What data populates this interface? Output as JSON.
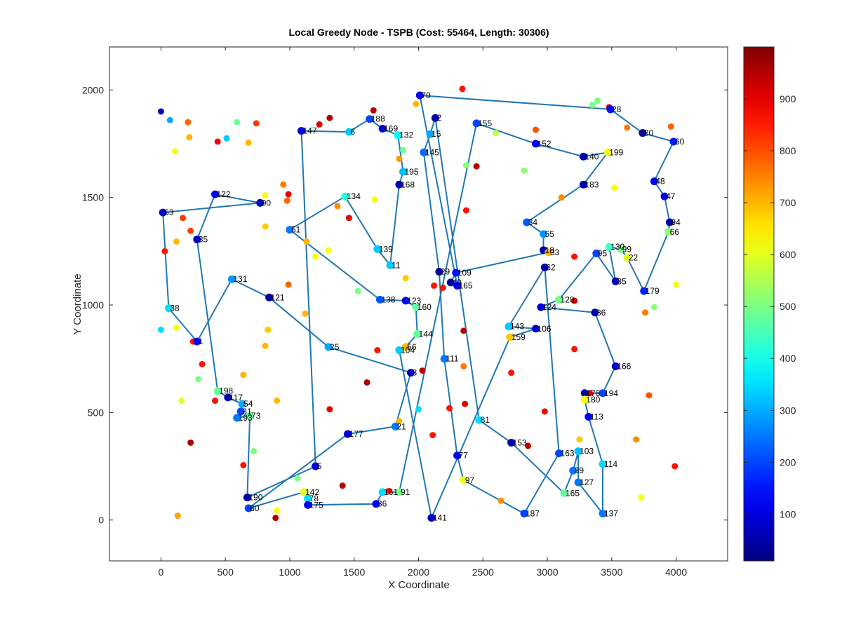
{
  "chart_data": {
    "type": "scatter",
    "title": "Local Greedy Node - TSPB (Cost: 55464, Length: 30306)",
    "xlabel": "X Coordinate",
    "ylabel": "Y Coordinate",
    "xlim": [
      -400,
      4400
    ],
    "ylim": [
      -190,
      2200
    ],
    "xticks": [
      0,
      500,
      1000,
      1500,
      2000,
      2500,
      3000,
      3500,
      4000
    ],
    "yticks": [
      0,
      500,
      1000,
      1500,
      2000
    ],
    "colorbar": {
      "colormap": "jet",
      "min": 10,
      "max": 1000,
      "ticks": [
        100,
        200,
        300,
        400,
        500,
        600,
        700,
        800,
        900
      ]
    },
    "tour": [
      {
        "label": "70",
        "x": 2010,
        "y": 1975,
        "c": 120
      },
      {
        "label": "28",
        "x": 3490,
        "y": 1910,
        "c": 140
      },
      {
        "label": "20",
        "x": 3740,
        "y": 1800,
        "c": 30
      },
      {
        "label": "60",
        "x": 3980,
        "y": 1760,
        "c": 160
      },
      {
        "label": "48",
        "x": 3830,
        "y": 1575,
        "c": 130
      },
      {
        "label": "47",
        "x": 3910,
        "y": 1505,
        "c": 110
      },
      {
        "label": "94",
        "x": 3950,
        "y": 1385,
        "c": 50
      },
      {
        "label": "66",
        "x": 3940,
        "y": 1340,
        "c": 520
      },
      {
        "label": "179",
        "x": 3750,
        "y": 1065,
        "c": 170
      },
      {
        "label": "22",
        "x": 3620,
        "y": 1220,
        "c": 600
      },
      {
        "label": "99",
        "x": 3570,
        "y": 1260,
        "c": 500
      },
      {
        "label": "130",
        "x": 3480,
        "y": 1270,
        "c": 440
      },
      {
        "label": "85",
        "x": 3530,
        "y": 1110,
        "c": 60
      },
      {
        "label": "95",
        "x": 3380,
        "y": 1240,
        "c": 200
      },
      {
        "label": "128",
        "x": 3090,
        "y": 1025,
        "c": 500
      },
      {
        "label": "124",
        "x": 2950,
        "y": 990,
        "c": 100
      },
      {
        "label": "86",
        "x": 3370,
        "y": 965,
        "c": 50
      },
      {
        "label": "166",
        "x": 3530,
        "y": 715,
        "c": 80
      },
      {
        "label": "194",
        "x": 3430,
        "y": 590,
        "c": 200
      },
      {
        "label": "176",
        "x": 3290,
        "y": 590,
        "c": 40
      },
      {
        "label": "180",
        "x": 3290,
        "y": 560,
        "c": 620
      },
      {
        "label": "113",
        "x": 3320,
        "y": 480,
        "c": 120
      },
      {
        "label": "114",
        "x": 3430,
        "y": 260,
        "c": 350
      },
      {
        "label": "137",
        "x": 3430,
        "y": 30,
        "c": 250
      },
      {
        "label": "127",
        "x": 3240,
        "y": 175,
        "c": 250
      },
      {
        "label": "103",
        "x": 3240,
        "y": 320,
        "c": 320
      },
      {
        "label": "89",
        "x": 3200,
        "y": 230,
        "c": 250
      },
      {
        "label": "165",
        "x": 3130,
        "y": 125,
        "c": 480
      },
      {
        "label": "153",
        "x": 2720,
        "y": 360,
        "c": 50
      },
      {
        "label": "81",
        "x": 2470,
        "y": 465,
        "c": 350
      },
      {
        "label": "2",
        "x": 2130,
        "y": 1870,
        "c": 60
      },
      {
        "label": "15",
        "x": 2090,
        "y": 1795,
        "c": 300
      },
      {
        "label": "145",
        "x": 2040,
        "y": 1710,
        "c": 240
      },
      {
        "label": "29",
        "x": 2160,
        "y": 1155,
        "c": 30
      },
      {
        "label": "111",
        "x": 2200,
        "y": 750,
        "c": 250
      },
      {
        "label": "77",
        "x": 2300,
        "y": 300,
        "c": 120
      },
      {
        "label": "97",
        "x": 2350,
        "y": 185,
        "c": 620
      },
      {
        "label": "187",
        "x": 2820,
        "y": 30,
        "c": 200
      },
      {
        "label": "163",
        "x": 3090,
        "y": 310,
        "c": 200
      },
      {
        "label": "62",
        "x": 2980,
        "y": 1175,
        "c": 60
      },
      {
        "label": "143",
        "x": 2700,
        "y": 900,
        "c": 330
      },
      {
        "label": "106",
        "x": 2910,
        "y": 890,
        "c": 80
      },
      {
        "label": "159",
        "x": 2710,
        "y": 850,
        "c": 680
      },
      {
        "label": "141",
        "x": 2100,
        "y": 10,
        "c": 80
      },
      {
        "label": "104",
        "x": 1850,
        "y": 790,
        "c": 330
      },
      {
        "label": "56",
        "x": 1900,
        "y": 805,
        "c": 700
      },
      {
        "label": "144",
        "x": 1990,
        "y": 865,
        "c": 480
      },
      {
        "label": "160",
        "x": 1980,
        "y": 990,
        "c": 480
      },
      {
        "label": "123",
        "x": 1900,
        "y": 1020,
        "c": 120
      },
      {
        "label": "138",
        "x": 1700,
        "y": 1025,
        "c": 220
      },
      {
        "label": "51",
        "x": 1000,
        "y": 1350,
        "c": 250
      },
      {
        "label": "134",
        "x": 1430,
        "y": 1505,
        "c": 420
      },
      {
        "label": "139",
        "x": 1680,
        "y": 1260,
        "c": 330
      },
      {
        "label": "11",
        "x": 1780,
        "y": 1185,
        "c": 330
      },
      {
        "label": "168",
        "x": 1850,
        "y": 1560,
        "c": 60
      },
      {
        "label": "195",
        "x": 1880,
        "y": 1620,
        "c": 320
      },
      {
        "label": "132",
        "x": 1840,
        "y": 1790,
        "c": 380
      },
      {
        "label": "169",
        "x": 1720,
        "y": 1820,
        "c": 100
      },
      {
        "label": "188",
        "x": 1620,
        "y": 1865,
        "c": 200
      },
      {
        "label": "6",
        "x": 1460,
        "y": 1805,
        "c": 330
      },
      {
        "label": "147",
        "x": 1090,
        "y": 1810,
        "c": 100
      },
      {
        "label": "5",
        "x": 1200,
        "y": 250,
        "c": 100
      },
      {
        "label": "190",
        "x": 670,
        "y": 105,
        "c": 50
      },
      {
        "label": "73",
        "x": 690,
        "y": 485,
        "c": 480
      },
      {
        "label": "193",
        "x": 590,
        "y": 475,
        "c": 250
      },
      {
        "label": "31",
        "x": 620,
        "y": 505,
        "c": 200
      },
      {
        "label": "54",
        "x": 630,
        "y": 540,
        "c": 300
      },
      {
        "label": "117",
        "x": 520,
        "y": 570,
        "c": 50
      },
      {
        "label": "198",
        "x": 440,
        "y": 600,
        "c": 480
      },
      {
        "label": "35",
        "x": 280,
        "y": 1305,
        "c": 80
      },
      {
        "label": "122",
        "x": 420,
        "y": 1515,
        "c": 120
      },
      {
        "label": "90",
        "x": 770,
        "y": 1475,
        "c": 80
      },
      {
        "label": "63",
        "x": 15,
        "y": 1430,
        "c": 80
      },
      {
        "label": "38",
        "x": 60,
        "y": 985,
        "c": 350
      },
      {
        "label": "1",
        "x": 280,
        "y": 830,
        "c": 120
      },
      {
        "label": "131",
        "x": 550,
        "y": 1120,
        "c": 280
      },
      {
        "label": "121",
        "x": 840,
        "y": 1035,
        "c": 40
      },
      {
        "label": "25",
        "x": 1300,
        "y": 805,
        "c": 300
      },
      {
        "label": "8",
        "x": 1940,
        "y": 685,
        "c": 80
      },
      {
        "label": "21",
        "x": 1820,
        "y": 435,
        "c": 250
      },
      {
        "label": "177",
        "x": 1450,
        "y": 400,
        "c": 100
      },
      {
        "label": "80",
        "x": 680,
        "y": 55,
        "c": 200
      },
      {
        "label": "142",
        "x": 1110,
        "y": 130,
        "c": 600
      },
      {
        "label": "78",
        "x": 1140,
        "y": 100,
        "c": 350
      },
      {
        "label": "175",
        "x": 1140,
        "y": 70,
        "c": 120
      },
      {
        "label": "36",
        "x": 1670,
        "y": 75,
        "c": 120
      },
      {
        "label": "161",
        "x": 1720,
        "y": 130,
        "c": 350
      },
      {
        "label": "91",
        "x": 1850,
        "y": 130,
        "c": 500
      },
      {
        "label": "155",
        "x": 2450,
        "y": 1845,
        "c": 200
      },
      {
        "label": "152",
        "x": 2910,
        "y": 1750,
        "c": 120
      },
      {
        "label": "140",
        "x": 3280,
        "y": 1690,
        "c": 60
      },
      {
        "label": "199",
        "x": 3470,
        "y": 1710,
        "c": 620
      },
      {
        "label": "183",
        "x": 3280,
        "y": 1560,
        "c": 60
      },
      {
        "label": "34",
        "x": 2840,
        "y": 1385,
        "c": 220
      },
      {
        "label": "55",
        "x": 2970,
        "y": 1330,
        "c": 280
      },
      {
        "label": "18",
        "x": 2970,
        "y": 1255,
        "c": 60
      },
      {
        "label": "33",
        "x": 3010,
        "y": 1245,
        "c": 700
      },
      {
        "label": "109",
        "x": 2290,
        "y": 1150,
        "c": 150
      },
      {
        "label": "40",
        "x": 2250,
        "y": 1105,
        "c": 40
      },
      {
        "label": "165b",
        "x": 2300,
        "y": 1090,
        "c": 120
      }
    ],
    "others": [
      {
        "x": 0,
        "y": 1900,
        "c": 80
      },
      {
        "x": 70,
        "y": 1860,
        "c": 300
      },
      {
        "x": 210,
        "y": 1850,
        "c": 780
      },
      {
        "x": 220,
        "y": 1780,
        "c": 700
      },
      {
        "x": 110,
        "y": 1715,
        "c": 620
      },
      {
        "x": 440,
        "y": 1760,
        "c": 880
      },
      {
        "x": 510,
        "y": 1775,
        "c": 330
      },
      {
        "x": 590,
        "y": 1850,
        "c": 480
      },
      {
        "x": 680,
        "y": 1755,
        "c": 700
      },
      {
        "x": 740,
        "y": 1845,
        "c": 820
      },
      {
        "x": 1230,
        "y": 1840,
        "c": 900
      },
      {
        "x": 1310,
        "y": 1870,
        "c": 950
      },
      {
        "x": 1650,
        "y": 1905,
        "c": 940
      },
      {
        "x": 1980,
        "y": 1935,
        "c": 700
      },
      {
        "x": 2340,
        "y": 2005,
        "c": 860
      },
      {
        "x": 3350,
        "y": 1930,
        "c": 500
      },
      {
        "x": 3390,
        "y": 1950,
        "c": 500
      },
      {
        "x": 3480,
        "y": 1920,
        "c": 900
      },
      {
        "x": 3620,
        "y": 1825,
        "c": 760
      },
      {
        "x": 3960,
        "y": 1830,
        "c": 780
      },
      {
        "x": 1850,
        "y": 1680,
        "c": 730
      },
      {
        "x": 1880,
        "y": 1720,
        "c": 480
      },
      {
        "x": 2370,
        "y": 1650,
        "c": 520
      },
      {
        "x": 2450,
        "y": 1645,
        "c": 950
      },
      {
        "x": 2600,
        "y": 1800,
        "c": 560
      },
      {
        "x": 2910,
        "y": 1815,
        "c": 800
      },
      {
        "x": 2820,
        "y": 1625,
        "c": 520
      },
      {
        "x": 3110,
        "y": 1500,
        "c": 740
      },
      {
        "x": 3520,
        "y": 1545,
        "c": 620
      },
      {
        "x": 1660,
        "y": 1490,
        "c": 620
      },
      {
        "x": 1370,
        "y": 1460,
        "c": 740
      },
      {
        "x": 1460,
        "y": 1405,
        "c": 900
      },
      {
        "x": 2370,
        "y": 1440,
        "c": 860
      },
      {
        "x": 950,
        "y": 1560,
        "c": 760
      },
      {
        "x": 980,
        "y": 1485,
        "c": 780
      },
      {
        "x": 990,
        "y": 1515,
        "c": 900
      },
      {
        "x": 810,
        "y": 1510,
        "c": 620
      },
      {
        "x": 810,
        "y": 1365,
        "c": 680
      },
      {
        "x": 170,
        "y": 1405,
        "c": 820
      },
      {
        "x": 230,
        "y": 1345,
        "c": 820
      },
      {
        "x": 120,
        "y": 1295,
        "c": 700
      },
      {
        "x": 30,
        "y": 1250,
        "c": 860
      },
      {
        "x": 1130,
        "y": 1295,
        "c": 700
      },
      {
        "x": 1200,
        "y": 1225,
        "c": 620
      },
      {
        "x": 1300,
        "y": 1255,
        "c": 620
      },
      {
        "x": 1530,
        "y": 1065,
        "c": 500
      },
      {
        "x": 1900,
        "y": 1125,
        "c": 680
      },
      {
        "x": 2120,
        "y": 1090,
        "c": 860
      },
      {
        "x": 2190,
        "y": 1080,
        "c": 860
      },
      {
        "x": 990,
        "y": 1095,
        "c": 780
      },
      {
        "x": 1120,
        "y": 960,
        "c": 700
      },
      {
        "x": 0,
        "y": 885,
        "c": 350
      },
      {
        "x": 120,
        "y": 895,
        "c": 620
      },
      {
        "x": 250,
        "y": 830,
        "c": 860
      },
      {
        "x": 830,
        "y": 885,
        "c": 680
      },
      {
        "x": 810,
        "y": 810,
        "c": 700
      },
      {
        "x": 320,
        "y": 725,
        "c": 860
      },
      {
        "x": 290,
        "y": 655,
        "c": 500
      },
      {
        "x": 640,
        "y": 675,
        "c": 700
      },
      {
        "x": 420,
        "y": 555,
        "c": 860
      },
      {
        "x": 160,
        "y": 555,
        "c": 600
      },
      {
        "x": 900,
        "y": 555,
        "c": 700
      },
      {
        "x": 1680,
        "y": 790,
        "c": 860
      },
      {
        "x": 2350,
        "y": 880,
        "c": 940
      },
      {
        "x": 2030,
        "y": 695,
        "c": 940
      },
      {
        "x": 2350,
        "y": 715,
        "c": 760
      },
      {
        "x": 1600,
        "y": 640,
        "c": 960
      },
      {
        "x": 1310,
        "y": 515,
        "c": 900
      },
      {
        "x": 2000,
        "y": 515,
        "c": 350
      },
      {
        "x": 2240,
        "y": 520,
        "c": 860
      },
      {
        "x": 2360,
        "y": 540,
        "c": 900
      },
      {
        "x": 1850,
        "y": 460,
        "c": 700
      },
      {
        "x": 2110,
        "y": 395,
        "c": 860
      },
      {
        "x": 2720,
        "y": 685,
        "c": 860
      },
      {
        "x": 2980,
        "y": 505,
        "c": 880
      },
      {
        "x": 3210,
        "y": 1225,
        "c": 860
      },
      {
        "x": 3210,
        "y": 1020,
        "c": 940
      },
      {
        "x": 3210,
        "y": 795,
        "c": 860
      },
      {
        "x": 3330,
        "y": 590,
        "c": 900
      },
      {
        "x": 3790,
        "y": 580,
        "c": 800
      },
      {
        "x": 3760,
        "y": 965,
        "c": 760
      },
      {
        "x": 3830,
        "y": 990,
        "c": 520
      },
      {
        "x": 4000,
        "y": 1095,
        "c": 620
      },
      {
        "x": 3250,
        "y": 375,
        "c": 680
      },
      {
        "x": 3690,
        "y": 375,
        "c": 740
      },
      {
        "x": 3990,
        "y": 250,
        "c": 860
      },
      {
        "x": 3730,
        "y": 105,
        "c": 620
      },
      {
        "x": 2640,
        "y": 90,
        "c": 740
      },
      {
        "x": 2850,
        "y": 345,
        "c": 940
      },
      {
        "x": 720,
        "y": 320,
        "c": 500
      },
      {
        "x": 640,
        "y": 255,
        "c": 860
      },
      {
        "x": 1060,
        "y": 195,
        "c": 500
      },
      {
        "x": 1410,
        "y": 160,
        "c": 940
      },
      {
        "x": 1770,
        "y": 135,
        "c": 860
      },
      {
        "x": 230,
        "y": 360,
        "c": 960
      },
      {
        "x": 130,
        "y": 20,
        "c": 720
      },
      {
        "x": 900,
        "y": 45,
        "c": 620
      },
      {
        "x": 890,
        "y": 10,
        "c": 960
      }
    ]
  }
}
